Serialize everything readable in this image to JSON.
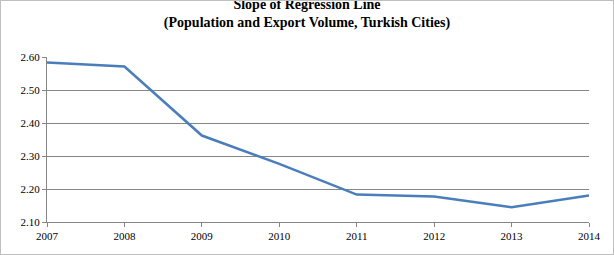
{
  "chart_data": {
    "type": "line",
    "title": "Slope of Regression Line",
    "subtitle": "(Population and Export Volume, Turkish Cities)",
    "categories": [
      "2007",
      "2008",
      "2009",
      "2010",
      "2011",
      "2012",
      "2013",
      "2014"
    ],
    "values": [
      2.583,
      2.571,
      2.362,
      2.276,
      2.183,
      2.177,
      2.145,
      2.18
    ],
    "color": "#4a7ebb",
    "ylim": [
      2.1,
      2.6
    ],
    "yticks": [
      {
        "value": 2.1,
        "label": "2.10"
      },
      {
        "value": 2.2,
        "label": "2.20"
      },
      {
        "value": 2.3,
        "label": "2.30"
      },
      {
        "value": 2.4,
        "label": "2.40"
      },
      {
        "value": 2.5,
        "label": "2.50"
      },
      {
        "value": 2.6,
        "label": "2.60"
      }
    ],
    "grid": true
  }
}
